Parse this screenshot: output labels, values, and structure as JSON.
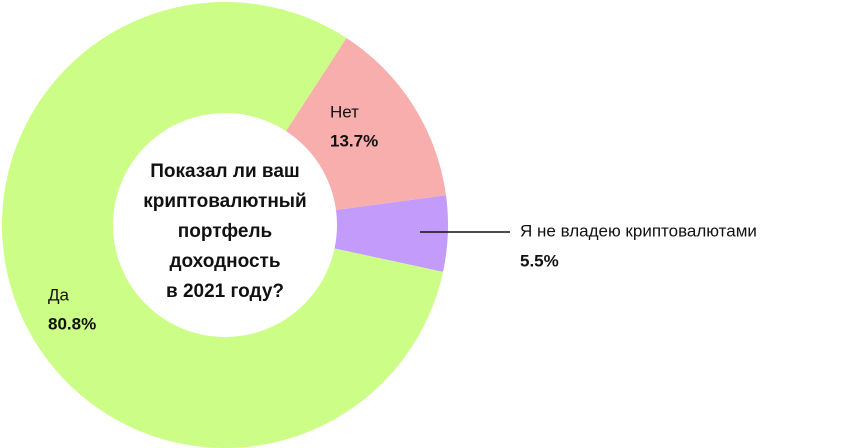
{
  "chart_data": {
    "type": "donut",
    "title_lines": [
      "Показал ли ваш",
      "криптовалютный",
      "портфель",
      "доходность",
      "в 2021 году?"
    ],
    "categories": [
      "Нет",
      "Я не владею криптовалютами",
      "Да"
    ],
    "values": [
      13.7,
      5.5,
      80.8
    ],
    "value_labels": [
      "13.7%",
      "5.5%",
      "80.8%"
    ],
    "colors": [
      "#f9aeae",
      "#c39bfb",
      "#ccfd86"
    ]
  }
}
